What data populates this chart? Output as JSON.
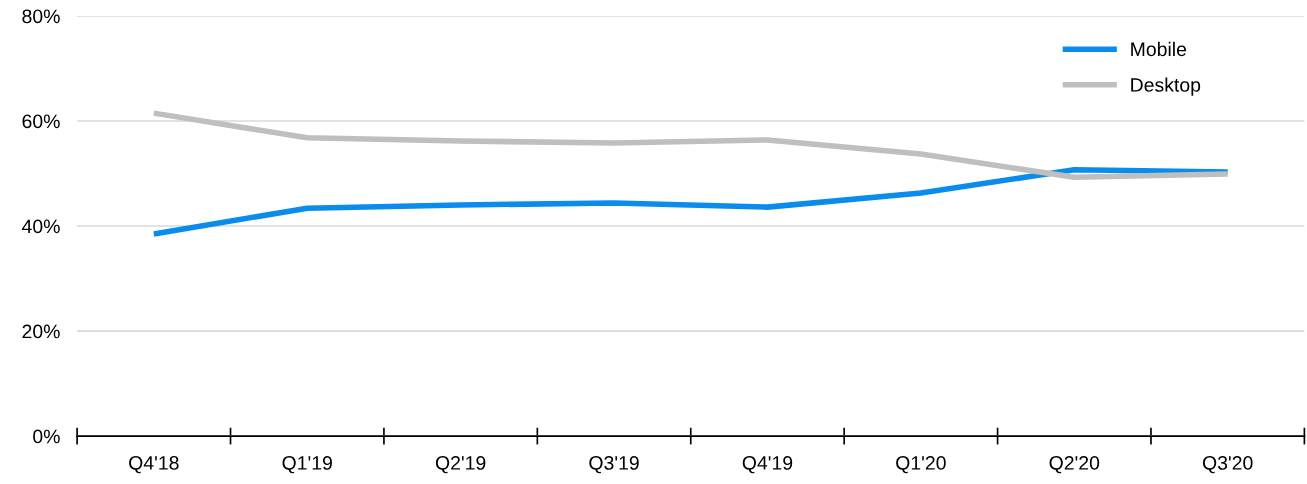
{
  "chart_data": {
    "type": "line",
    "categories": [
      "Q4'18",
      "Q1'19",
      "Q2'19",
      "Q3'19",
      "Q4'19",
      "Q1'20",
      "Q2'20",
      "Q3'20"
    ],
    "series": [
      {
        "name": "Mobile",
        "color": "#0a8ced",
        "values": [
          38.5,
          43.4,
          44.0,
          44.4,
          43.6,
          46.3,
          50.7,
          50.3
        ]
      },
      {
        "name": "Desktop",
        "color": "#bfbfbf",
        "values": [
          61.5,
          56.8,
          56.2,
          55.8,
          56.4,
          53.7,
          49.3,
          49.9
        ]
      }
    ],
    "ylim": [
      0,
      80
    ],
    "yticks": [
      {
        "value": 0,
        "label": "0%"
      },
      {
        "value": 20,
        "label": "20%"
      },
      {
        "value": 40,
        "label": "40%"
      },
      {
        "value": 60,
        "label": "60%"
      },
      {
        "value": 80,
        "label": "80%"
      }
    ],
    "grid": "y",
    "legend": "top right",
    "marker": "none",
    "line_style": "solid"
  }
}
